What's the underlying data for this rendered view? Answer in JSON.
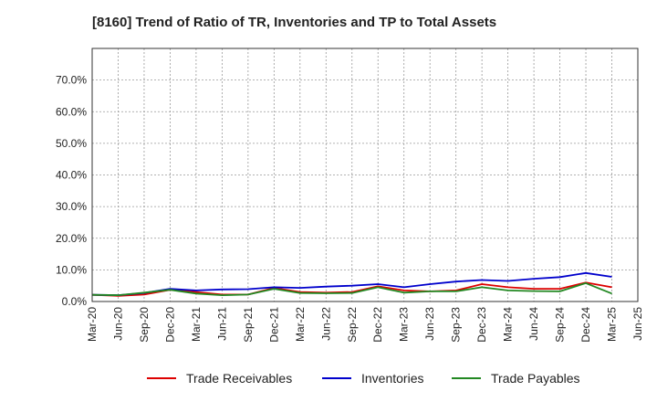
{
  "chart_data": {
    "type": "line",
    "title": "[8160]  Trend of Ratio of TR, Inventories and TP to Total Assets",
    "xlabel": "",
    "ylabel": "",
    "ylim": [
      0,
      0.8
    ],
    "y_ticks": [
      0,
      0.1,
      0.2,
      0.3,
      0.4,
      0.5,
      0.6,
      0.7
    ],
    "y_tick_labels": [
      "0.0%",
      "10.0%",
      "20.0%",
      "30.0%",
      "40.0%",
      "50.0%",
      "60.0%",
      "70.0%"
    ],
    "x_tick_labels": [
      "Mar-20",
      "Jun-20",
      "Sep-20",
      "Dec-20",
      "Mar-21",
      "Jun-21",
      "Sep-21",
      "Dec-21",
      "Mar-22",
      "Jun-22",
      "Sep-22",
      "Dec-22",
      "Mar-23",
      "Jun-23",
      "Sep-23",
      "Dec-23",
      "Mar-24",
      "Jun-24",
      "Sep-24",
      "Dec-24",
      "Mar-25",
      "Jun-25"
    ],
    "grid": true,
    "legend_position": "bottom",
    "series": [
      {
        "name": "Trade Receivables",
        "color": "#dd0000",
        "values": [
          0.021,
          0.018,
          0.022,
          0.037,
          0.03,
          0.022,
          0.022,
          0.043,
          0.03,
          0.028,
          0.03,
          0.048,
          0.035,
          0.032,
          0.035,
          0.055,
          0.045,
          0.04,
          0.04,
          0.06,
          0.045
        ]
      },
      {
        "name": "Inventories",
        "color": "#0000cc",
        "values": [
          0.021,
          0.02,
          0.027,
          0.04,
          0.035,
          0.038,
          0.039,
          0.045,
          0.043,
          0.047,
          0.05,
          0.055,
          0.045,
          0.055,
          0.063,
          0.068,
          0.065,
          0.072,
          0.077,
          0.09,
          0.078
        ]
      },
      {
        "name": "Trade Payables",
        "color": "#228822",
        "values": [
          0.021,
          0.02,
          0.028,
          0.037,
          0.025,
          0.02,
          0.022,
          0.04,
          0.027,
          0.026,
          0.027,
          0.045,
          0.028,
          0.032,
          0.032,
          0.045,
          0.035,
          0.033,
          0.032,
          0.058,
          0.025
        ]
      }
    ]
  }
}
